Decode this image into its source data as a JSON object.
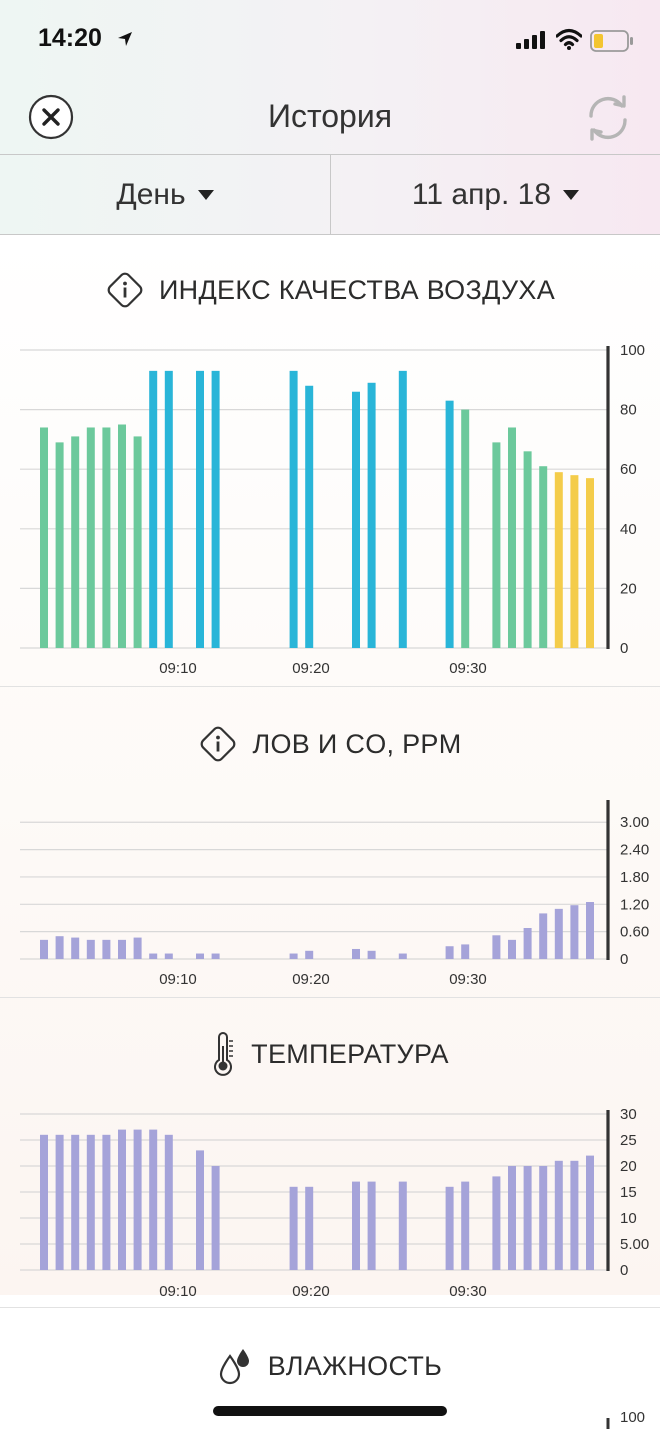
{
  "status_bar": {
    "time": "14:20",
    "icons": [
      "location-arrow-icon",
      "signal-icon",
      "wifi-icon",
      "battery-icon"
    ]
  },
  "nav": {
    "title": "История",
    "close_icon": "close-icon",
    "refresh_icon": "refresh-icon"
  },
  "selectors": {
    "period": "День",
    "date": "11 апр. 18"
  },
  "colors": {
    "green": "#6cc99c",
    "blue": "#29b5d8",
    "yellow": "#f4cc4a",
    "purple": "#a5a3d9",
    "axis": "#333333",
    "grid": "#d8d8d8"
  },
  "sections": [
    {
      "title": "ИНДЕКС КАЧЕСТВА ВОЗДУХА",
      "icon": "info-icon"
    },
    {
      "title": "ЛОВ И CO, PPM",
      "icon": "info-icon"
    },
    {
      "title": "ТЕМПЕРАТУРА",
      "icon": "thermometer-icon"
    },
    {
      "title": "ВЛАЖНОСТЬ",
      "icon": "water-drops-icon"
    }
  ],
  "chart_data": [
    {
      "type": "bar",
      "title": "ИНДЕКС КАЧЕСТВА ВОЗДУХА",
      "x_ticks": [
        "09:10",
        "09:20",
        "09:30"
      ],
      "y_ticks": [
        "100",
        "80",
        "60",
        "40",
        "20",
        "0"
      ],
      "ylim": [
        0,
        100
      ],
      "grid": true,
      "y_axis_side": "right",
      "values": [
        74,
        69,
        71,
        74,
        74,
        75,
        71,
        93,
        93,
        null,
        93,
        93,
        null,
        null,
        null,
        null,
        93,
        88,
        null,
        null,
        86,
        89,
        null,
        93,
        null,
        null,
        83,
        80,
        null,
        69,
        74,
        66,
        61,
        59,
        58,
        57
      ],
      "colors": [
        "green",
        "green",
        "green",
        "green",
        "green",
        "green",
        "green",
        "blue",
        "blue",
        null,
        "blue",
        "blue",
        null,
        null,
        null,
        null,
        "blue",
        "blue",
        null,
        null,
        "blue",
        "blue",
        null,
        "blue",
        null,
        null,
        "blue",
        "green",
        null,
        "green",
        "green",
        "green",
        "green",
        "yellow",
        "yellow",
        "yellow"
      ]
    },
    {
      "type": "bar",
      "title": "ЛОВ И CO, PPM",
      "x_ticks": [
        "09:10",
        "09:20",
        "09:30"
      ],
      "y_ticks": [
        "3.00",
        "2.40",
        "1.80",
        "1.20",
        "0.60",
        "0"
      ],
      "ylim": [
        0,
        3.4
      ],
      "grid": true,
      "y_axis_side": "right",
      "values": [
        0.42,
        0.5,
        0.47,
        0.42,
        0.42,
        0.42,
        0.47,
        0.12,
        0.12,
        null,
        0.12,
        0.12,
        null,
        null,
        null,
        null,
        0.12,
        0.18,
        null,
        null,
        0.22,
        0.18,
        null,
        0.12,
        null,
        null,
        0.28,
        0.32,
        null,
        0.52,
        0.42,
        0.68,
        1.0,
        1.1,
        1.18,
        1.25
      ],
      "color": "purple"
    },
    {
      "type": "bar",
      "title": "ТЕМПЕРАТУРА",
      "x_ticks": [
        "09:10",
        "09:20",
        "09:30"
      ],
      "y_ticks": [
        "30",
        "25",
        "20",
        "15",
        "10",
        "5.00",
        "0"
      ],
      "ylim": [
        0,
        30
      ],
      "grid": true,
      "y_axis_side": "right",
      "values": [
        26,
        26,
        26,
        26,
        26,
        27,
        27,
        27,
        26,
        null,
        23,
        20,
        null,
        null,
        null,
        null,
        16,
        16,
        null,
        null,
        17,
        17,
        null,
        17,
        null,
        null,
        16,
        17,
        null,
        18,
        20,
        20,
        20,
        21,
        21,
        22
      ],
      "color": "purple"
    },
    {
      "type": "bar",
      "title": "ВЛАЖНОСТЬ",
      "y_ticks": [
        "100"
      ],
      "ylim": [
        0,
        100
      ],
      "y_axis_side": "right",
      "values": []
    }
  ]
}
